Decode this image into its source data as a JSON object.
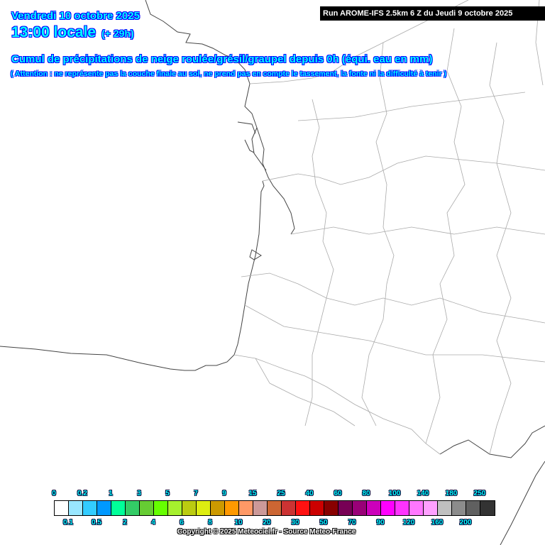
{
  "header": {
    "date": "Vendredi 10 octobre 2025",
    "time": "13:00 locale",
    "lead": "(+ 29h)",
    "run": "Run AROME-IFS 2.5km 6 Z du Jeudi 9 octobre 2025",
    "title": "Cumul de précipitations de neige roulée/grésil/graupel depuis 0h (équi. eau en mm)",
    "note": "( Attention : ne représente pas la couche finale au sol, ne prend pas en compte le tassement, la fonte ni la difficulté à tenir )"
  },
  "legend": {
    "colors": [
      "#ffffff",
      "#99e6ff",
      "#33ccff",
      "#0099ff",
      "#00ff99",
      "#33cc66",
      "#66cc33",
      "#66ff00",
      "#a6f02e",
      "#bbcc11",
      "#dded11",
      "#cc9900",
      "#ff9900",
      "#ff9966",
      "#cc9999",
      "#cc6633",
      "#cc3333",
      "#ff1111",
      "#cc0000",
      "#880000",
      "#770055",
      "#990077",
      "#cc00bb",
      "#ff00ff",
      "#ff33ff",
      "#ff77ff",
      "#ffa0ff",
      "#c0c0c0",
      "#8c8c8c",
      "#606060",
      "#333333"
    ],
    "labels": [
      "0",
      "0.1",
      "0.2",
      "0.5",
      "1",
      "2",
      "3",
      "4",
      "5",
      "6",
      "7",
      "8",
      "9",
      "10",
      "15",
      "20",
      "25",
      "30",
      "40",
      "50",
      "60",
      "70",
      "80",
      "90",
      "100",
      "120",
      "140",
      "160",
      "180",
      "200",
      "250"
    ]
  },
  "copyright": "Copyright © 2025 Meteociel.fr - Source Meteo-France"
}
